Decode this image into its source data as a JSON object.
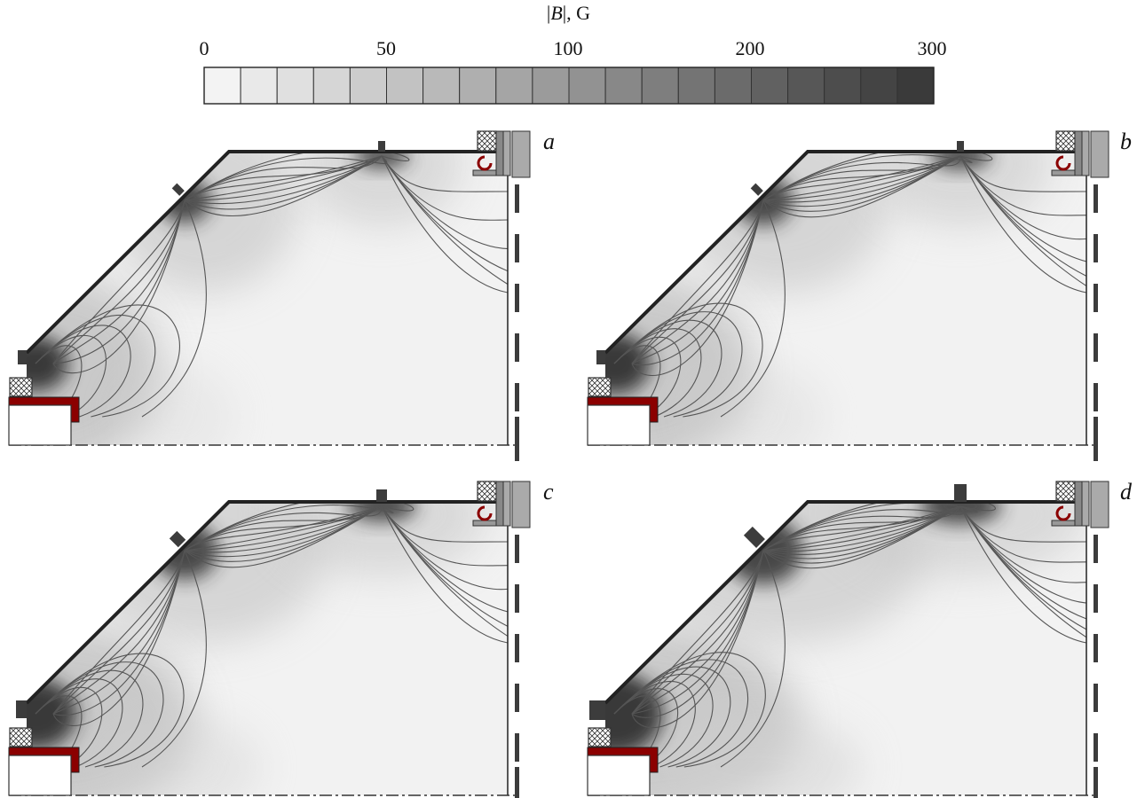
{
  "colorbar": {
    "title_parts": [
      "|",
      "B",
      "|, G"
    ],
    "tick_labels": [
      "0",
      "50",
      "100",
      "200",
      "300"
    ],
    "levels": 20,
    "color_light": "#f3f3f3",
    "color_dark": "#3a3a3a"
  },
  "panels": [
    {
      "label": "a",
      "diag_tab": "small",
      "top_tab": "small",
      "left_tab": "small",
      "darkness": 0.55
    },
    {
      "label": "b",
      "diag_tab": "small",
      "top_tab": "small",
      "left_tab": "small",
      "darkness": 0.65
    },
    {
      "label": "c",
      "diag_tab": "medium",
      "top_tab": "medium",
      "left_tab": "medium",
      "darkness": 0.8
    },
    {
      "label": "d",
      "diag_tab": "large",
      "top_tab": "large",
      "left_tab": "large",
      "darkness": 1.0
    }
  ],
  "colors": {
    "red_coil": "#8b0000",
    "outline": "#222222",
    "field_line": "#555555",
    "dark_element": "#3c3c3c"
  }
}
